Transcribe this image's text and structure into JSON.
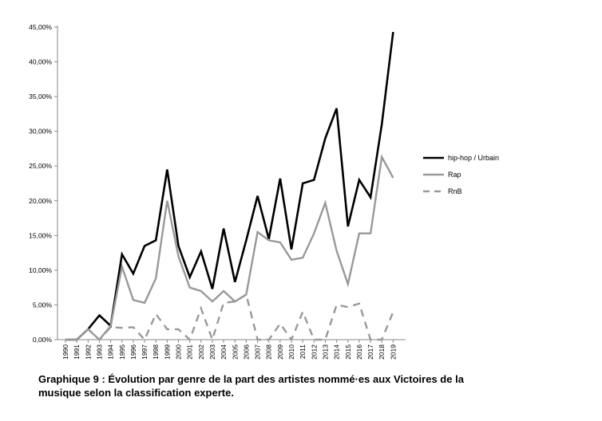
{
  "chart_data": {
    "type": "line",
    "x": [
      "1990",
      "1991",
      "1992",
      "1993",
      "1994",
      "1995",
      "1996",
      "1997",
      "1998",
      "1999",
      "2000",
      "2001",
      "2002",
      "2003",
      "2004",
      "2005",
      "2006",
      "2007",
      "2008",
      "2009",
      "2010",
      "2011",
      "2012",
      "2013",
      "2014",
      "2015",
      "2016",
      "2017",
      "2018",
      "2019"
    ],
    "yticks": [
      "0,00%",
      "5,00%",
      "10,00%",
      "15,00%",
      "20,00%",
      "25,00%",
      "30,00%",
      "35,00%",
      "40,00%",
      "45,00%"
    ],
    "ylim": [
      0,
      45
    ],
    "grid": false,
    "legend_position": "right",
    "series": [
      {
        "name": "hip-hop / Urbain",
        "style": "solid",
        "color": "#000000",
        "values": [
          0,
          0,
          1.5,
          3.5,
          2,
          12.3,
          9.5,
          13.5,
          14.3,
          24.5,
          13.5,
          9,
          12.7,
          7.3,
          16,
          8.3,
          14.3,
          20.7,
          14.5,
          23.2,
          13,
          22.5,
          23,
          29,
          33.3,
          16.3,
          23,
          20.5,
          31,
          44.3
        ]
      },
      {
        "name": "Rap",
        "style": "solid",
        "color": "#999999",
        "values": [
          0,
          0,
          1.5,
          0,
          2,
          10.5,
          5.7,
          5.3,
          8.8,
          20,
          12,
          7.5,
          7,
          5.5,
          7,
          5.5,
          6.5,
          15.5,
          14.3,
          14,
          11.5,
          11.8,
          15.3,
          19.7,
          12.8,
          8,
          15.3,
          15.3,
          26.3,
          23.3
        ]
      },
      {
        "name": "RnB",
        "style": "dashed",
        "color": "#999999",
        "values": [
          0,
          0,
          1.5,
          0,
          1.8,
          1.7,
          1.8,
          0,
          3.7,
          1.5,
          1.5,
          0,
          4.5,
          0,
          5.3,
          5.5,
          6.5,
          0,
          0,
          2.3,
          0,
          4,
          0,
          0,
          5,
          4.7,
          5.2,
          0,
          0,
          4
        ]
      }
    ]
  },
  "caption": {
    "line1": "Graphique 9 : Évolution par genre de la part des artistes nommé·es aux Victoires de la",
    "line2": "musique selon la classification experte."
  }
}
